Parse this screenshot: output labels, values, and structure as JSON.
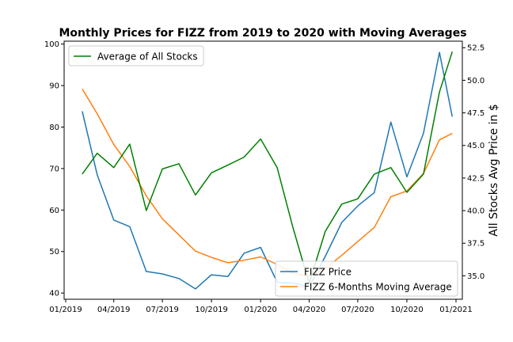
{
  "chart_data": {
    "type": "line",
    "title": "Monthly Prices for FIZZ from 2019 to 2020 with Moving Averages",
    "xlabel": "",
    "ylabel_left": "",
    "ylabel_right": "All Stocks Avg Price in $",
    "x_ticks": [
      "01/2019",
      "04/2019",
      "07/2019",
      "10/2019",
      "01/2020",
      "04/2020",
      "07/2020",
      "10/2020",
      "01/2021"
    ],
    "x_dates": [
      "2019-02-01",
      "2019-03-01",
      "2019-04-01",
      "2019-05-01",
      "2019-06-01",
      "2019-07-01",
      "2019-08-01",
      "2019-09-01",
      "2019-10-01",
      "2019-11-01",
      "2019-12-01",
      "2020-01-01",
      "2020-02-01",
      "2020-03-01",
      "2020-04-01",
      "2020-05-01",
      "2020-06-01",
      "2020-07-01",
      "2020-08-01",
      "2020-09-01",
      "2020-10-01",
      "2020-11-01",
      "2020-12-01",
      "2020-12-25"
    ],
    "left_axis": {
      "ylim": [
        38.5,
        100.7
      ],
      "ticks": [
        40,
        50,
        60,
        70,
        80,
        90,
        100
      ]
    },
    "right_axis": {
      "ylim": [
        33.2,
        53.0
      ],
      "ticks": [
        35.0,
        37.5,
        40.0,
        42.5,
        45.0,
        47.5,
        50.0,
        52.5
      ]
    },
    "series": [
      {
        "name": "FIZZ Price",
        "axis": "left",
        "color": "#1f77b4",
        "values": [
          83.8,
          68.5,
          57.6,
          56.0,
          45.2,
          44.6,
          43.5,
          41.0,
          44.4,
          44.0,
          49.6,
          51.0,
          42.6,
          42.4,
          41.5,
          48.8,
          57.0,
          61.0,
          64.2,
          81.2,
          68.0,
          78.5,
          98.0,
          82.5
        ]
      },
      {
        "name": "FIZZ 6-Months Moving Average",
        "axis": "left",
        "color": "#ff7f0e",
        "values": [
          89.2,
          83.2,
          75.8,
          70.5,
          63.4,
          57.9,
          54.0,
          50.1,
          48.6,
          47.3,
          47.9,
          48.7,
          46.9,
          44.8,
          44.1,
          45.9,
          49.1,
          52.4,
          55.8,
          63.2,
          64.6,
          68.8,
          76.9,
          78.5
        ]
      },
      {
        "name": "Average of All Stocks",
        "axis": "right",
        "color": "#008000",
        "values": [
          42.8,
          44.4,
          43.3,
          45.1,
          40.0,
          43.2,
          43.6,
          41.2,
          42.9,
          43.5,
          44.1,
          45.5,
          43.3,
          38.8,
          34.4,
          38.4,
          40.5,
          40.9,
          42.8,
          43.3,
          41.4,
          42.8,
          49.1,
          52.2
        ]
      }
    ],
    "legends": [
      {
        "placement": "upper-left",
        "entries": [
          "Average of All Stocks"
        ]
      },
      {
        "placement": "lower-right",
        "entries": [
          "FIZZ Price",
          "FIZZ 6-Months Moving Average"
        ]
      }
    ],
    "grid": false
  }
}
